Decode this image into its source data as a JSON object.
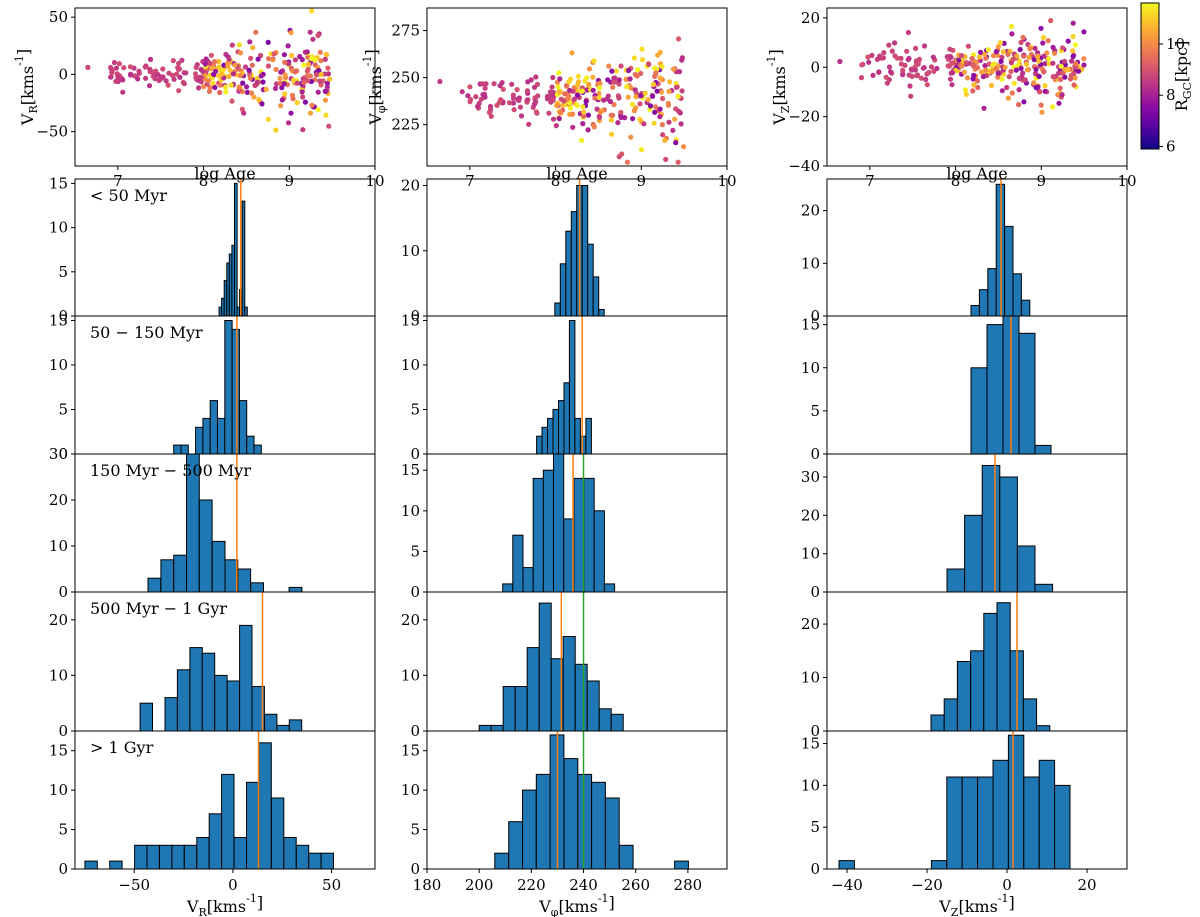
{
  "chart_data": {
    "type": "figure",
    "scatter": [
      {
        "x_label": "log Age",
        "y_label": "V_R[kms^-1]",
        "x_lim": [
          6.5,
          10
        ],
        "y_lim": [
          -80,
          58
        ],
        "x_ticks": [
          7,
          8,
          9,
          10
        ],
        "y_ticks": [
          -50,
          0,
          50
        ]
      },
      {
        "x_label": "log Age",
        "y_label": "V_φ[kms^-1]",
        "x_lim": [
          6.5,
          10
        ],
        "y_lim": [
          203,
          287
        ],
        "x_ticks": [
          7,
          8,
          9,
          10
        ],
        "y_ticks": [
          225,
          250,
          275
        ]
      },
      {
        "x_label": "log Age",
        "y_label": "V_Z[kms^-1]",
        "x_lim": [
          6.5,
          10
        ],
        "y_lim": [
          -40,
          24
        ],
        "x_ticks": [
          7,
          8,
          9,
          10
        ],
        "y_ticks": [
          -40,
          -20,
          0,
          20
        ]
      }
    ],
    "colorbar": {
      "label": "R_GC[kpc]",
      "range": [
        5.9,
        11.6
      ],
      "ticks": [
        6,
        8,
        10
      ]
    },
    "age_bins": [
      "< 50 Myr",
      "50 − 150 Myr",
      "150 Myr − 500 Myr",
      "500 Myr − 1 Gyr",
      "> 1 Gyr"
    ],
    "hist_columns": [
      {
        "x_label": "V_R[kms^-1]",
        "x_lim": [
          -80,
          72
        ],
        "x_ticks": [
          -50,
          0,
          50
        ]
      },
      {
        "x_label": "V_φ[kms^-1]",
        "x_lim": [
          180,
          295
        ],
        "x_ticks": [
          180,
          200,
          220,
          240,
          260,
          280
        ]
      },
      {
        "x_label": "V_Z[kms^-1]",
        "x_lim": [
          -45,
          30
        ],
        "x_ticks": [
          -40,
          -20,
          0,
          20
        ]
      }
    ],
    "reference_line_vphi": 240,
    "histograms": [
      [
        {
          "y_max": 15.5,
          "y_ticks": [
            0,
            5,
            10,
            15
          ],
          "median": 4,
          "x0": -7,
          "w": 1.3,
          "counts": [
            1,
            2,
            4,
            6,
            7,
            8,
            15,
            1,
            3,
            13,
            1
          ]
        },
        {
          "y_max": 21,
          "y_ticks": [
            0,
            10,
            20
          ],
          "median": 238.5,
          "x0": 229,
          "w": 2.1,
          "counts": [
            2,
            8,
            13,
            16,
            20,
            20,
            11,
            6,
            1
          ]
        },
        {
          "y_max": 26,
          "y_ticks": [
            0,
            10,
            20
          ],
          "median": -1.5,
          "x0": -9,
          "w": 2.1,
          "counts": [
            2,
            5,
            9,
            25,
            17,
            8,
            3
          ]
        }
      ],
      [
        {
          "y_max": 15.5,
          "y_ticks": [
            0,
            5,
            10,
            15
          ],
          "median": 2,
          "x0": -30,
          "w": 3.7,
          "counts": [
            1,
            1,
            0,
            3,
            4,
            6,
            4,
            15,
            14,
            6,
            2,
            1
          ]
        },
        {
          "y_max": 15.5,
          "y_ticks": [
            0,
            5,
            10,
            15
          ],
          "median": 239.5,
          "x0": 222,
          "w": 2.1,
          "counts": [
            2,
            3,
            4,
            5,
            6,
            8,
            15,
            4,
            2,
            4
          ]
        },
        {
          "y_max": 16,
          "y_ticks": [
            0,
            5,
            10,
            15
          ],
          "median": 1,
          "x0": -9,
          "w": 4,
          "counts": [
            10,
            15,
            16,
            14,
            1
          ]
        }
      ],
      [
        {
          "y_max": 30,
          "y_ticks": [
            0,
            10,
            20,
            30
          ],
          "median": 2,
          "x0": -43,
          "w": 6.5,
          "counts": [
            3,
            7,
            8,
            30,
            20,
            11,
            7,
            5,
            2,
            0,
            0,
            1
          ]
        },
        {
          "y_max": 17,
          "y_ticks": [
            0,
            5,
            10,
            15
          ],
          "median": 236,
          "x0": 209,
          "w": 3.9,
          "counts": [
            1,
            7,
            3,
            14,
            15,
            17,
            9,
            14,
            14,
            10,
            1
          ]
        },
        {
          "y_max": 36,
          "y_ticks": [
            0,
            10,
            20,
            30
          ],
          "median": -3,
          "x0": -15,
          "w": 4.4,
          "counts": [
            6,
            20,
            33,
            30,
            12,
            2
          ]
        }
      ],
      [
        {
          "y_max": 25,
          "y_ticks": [
            0,
            10,
            20
          ],
          "median": 15,
          "x0": -47,
          "w": 6.3,
          "counts": [
            5,
            0,
            6,
            11,
            15,
            14,
            10,
            9,
            19,
            8,
            3,
            1,
            2
          ]
        },
        {
          "y_max": 25,
          "y_ticks": [
            0,
            10,
            20
          ],
          "median": 231.5,
          "x0": 200,
          "w": 4.6,
          "counts": [
            1,
            1,
            8,
            8,
            15,
            23,
            13,
            17,
            12,
            9,
            4,
            3
          ]
        },
        {
          "y_max": 26,
          "y_ticks": [
            0,
            10,
            20
          ],
          "median": 2.5,
          "x0": -19,
          "w": 3.3,
          "counts": [
            3,
            6,
            13,
            15,
            22,
            24,
            15,
            6,
            1
          ]
        }
      ],
      [
        {
          "y_max": 17.5,
          "y_ticks": [
            0,
            5,
            10,
            15
          ],
          "median": 13,
          "x0": -75,
          "w": 6.3,
          "counts": [
            1,
            0,
            1,
            0,
            3,
            3,
            3,
            3,
            3,
            4,
            7,
            12,
            4,
            11,
            16,
            9,
            4,
            3,
            2,
            2
          ]
        },
        {
          "y_max": 17.5,
          "y_ticks": [
            0,
            5,
            10,
            15
          ],
          "median": 230,
          "x0": 206,
          "w": 5.3,
          "counts": [
            2,
            6,
            10,
            12,
            17,
            14,
            12,
            11,
            9,
            3,
            0,
            0,
            0,
            1
          ]
        },
        {
          "y_max": 16.5,
          "y_ticks": [
            0,
            5,
            10,
            15
          ],
          "median": 1.5,
          "x0": -42,
          "w": 3.85,
          "counts": [
            1,
            0,
            0,
            0,
            0,
            0,
            1,
            11,
            11,
            11,
            13,
            16,
            11,
            13,
            10
          ]
        }
      ]
    ]
  }
}
